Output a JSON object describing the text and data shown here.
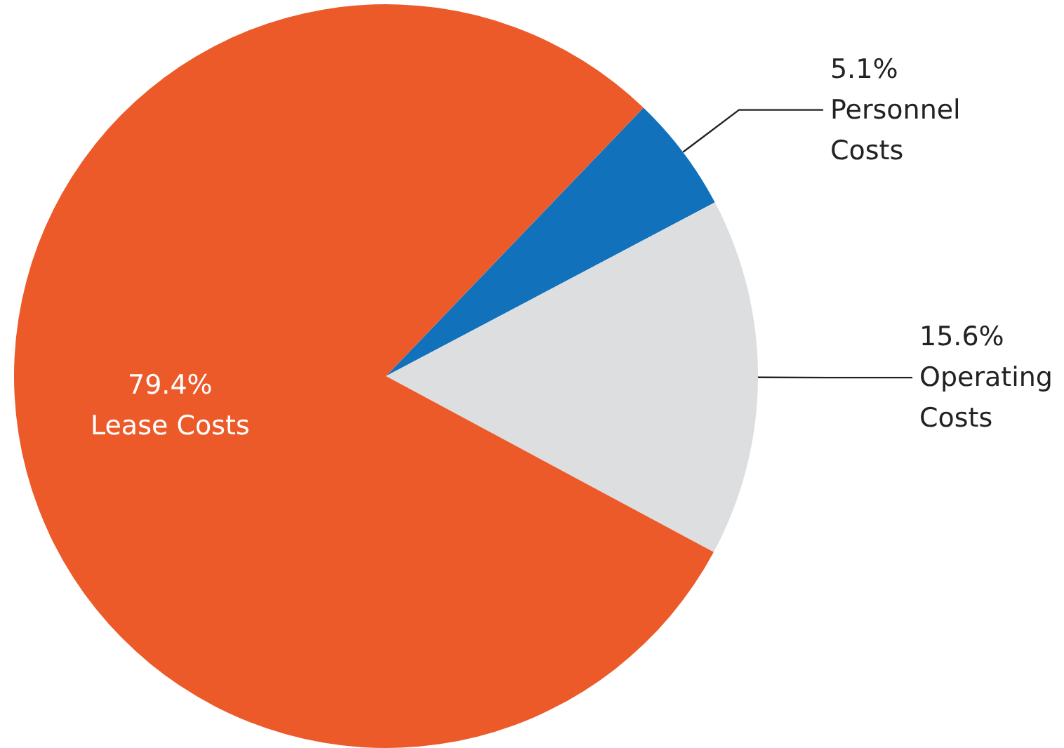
{
  "chart_data": {
    "type": "pie",
    "categories": [
      "Personnel Costs",
      "Operating Costs",
      "Lease Costs"
    ],
    "values": [
      5.1,
      15.6,
      79.4
    ],
    "value_labels": [
      "5.1%",
      "15.6%",
      "79.4%"
    ],
    "colors": [
      "#1172bb",
      "#dddee0",
      "#ec5a2a"
    ],
    "legend": false
  }
}
